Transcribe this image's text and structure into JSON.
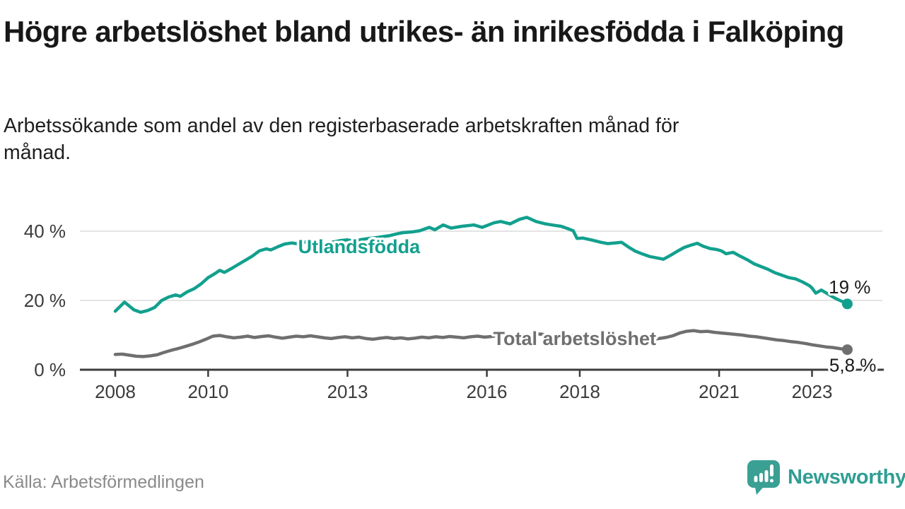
{
  "header": {
    "title": "Högre arbetslöshet bland utrikes- än inrikesfödda i Falköping",
    "subtitle": "Arbetssökande som andel av den registerbaserade arbetskraften månad för månad."
  },
  "footer": {
    "source": "Källa: Arbetsförmedlingen",
    "brand_name": "Newsworthy",
    "brand_icon": "newsworthy-speech-bubble-bar-chart-icon"
  },
  "colors": {
    "teal_series": "#12a08e",
    "gray_series": "#6f6f6f",
    "axis": "#3d3d3d",
    "grid": "#dcdcdc",
    "tick_label": "#3b3b3b",
    "value_label": "#1a1a1a",
    "title": "#181818",
    "subtitle": "#202020",
    "source": "#8a8a8a",
    "brand": "#2f9e93",
    "background": "#ffffff"
  },
  "chart_data": {
    "type": "line",
    "title": "Högre arbetslöshet bland utrikes- än inrikesfödda i Falköping",
    "subtitle": "Arbetssökande som andel av den registerbaserade arbetskraften månad för månad.",
    "xlabel": "",
    "ylabel": "",
    "xlim": [
      2007.25,
      2024.5
    ],
    "ylim": [
      0,
      46
    ],
    "grid": "horizontal",
    "legend": "direct-labels",
    "x_ticks": [
      {
        "year": 2008,
        "label": "2008"
      },
      {
        "year": 2010,
        "label": "2010"
      },
      {
        "year": 2013,
        "label": "2013"
      },
      {
        "year": 2016,
        "label": "2016"
      },
      {
        "year": 2018,
        "label": "2018"
      },
      {
        "year": 2021,
        "label": "2021"
      },
      {
        "year": 2023,
        "label": "2023"
      }
    ],
    "y_ticks": [
      {
        "value": 0,
        "label": "0 %"
      },
      {
        "value": 20,
        "label": "20 %"
      },
      {
        "value": 40,
        "label": "40 %"
      }
    ],
    "series": [
      {
        "name": "Utlandsfödda",
        "color_key": "teal_series",
        "end_label": "19 %",
        "end_value": 19.0,
        "label_anchor": {
          "x": 2013.25,
          "y": 33.7
        },
        "points": [
          [
            2008.0,
            16.9
          ],
          [
            2008.1,
            18.2
          ],
          [
            2008.2,
            19.5
          ],
          [
            2008.3,
            18.4
          ],
          [
            2008.4,
            17.3
          ],
          [
            2008.55,
            16.6
          ],
          [
            2008.7,
            17.1
          ],
          [
            2008.85,
            18.0
          ],
          [
            2009.0,
            20.0
          ],
          [
            2009.15,
            21.0
          ],
          [
            2009.3,
            21.6
          ],
          [
            2009.4,
            21.2
          ],
          [
            2009.55,
            22.5
          ],
          [
            2009.7,
            23.4
          ],
          [
            2009.85,
            24.8
          ],
          [
            2010.0,
            26.6
          ],
          [
            2010.15,
            27.8
          ],
          [
            2010.25,
            28.7
          ],
          [
            2010.35,
            28.1
          ],
          [
            2010.5,
            29.2
          ],
          [
            2010.65,
            30.4
          ],
          [
            2010.8,
            31.6
          ],
          [
            2010.95,
            32.8
          ],
          [
            2011.1,
            34.3
          ],
          [
            2011.25,
            34.9
          ],
          [
            2011.35,
            34.6
          ],
          [
            2011.5,
            35.5
          ],
          [
            2011.65,
            36.3
          ],
          [
            2011.8,
            36.6
          ],
          [
            2011.95,
            36.3
          ],
          [
            2012.1,
            36.9
          ],
          [
            2012.25,
            37.2
          ],
          [
            2012.4,
            36.8
          ],
          [
            2012.55,
            36.5
          ],
          [
            2012.7,
            36.9
          ],
          [
            2012.85,
            37.3
          ],
          [
            2013.0,
            37.5
          ],
          [
            2013.15,
            37.1
          ],
          [
            2013.3,
            37.6
          ],
          [
            2013.45,
            37.9
          ],
          [
            2013.6,
            38.1
          ],
          [
            2013.75,
            38.4
          ],
          [
            2013.9,
            38.7
          ],
          [
            2014.05,
            39.2
          ],
          [
            2014.2,
            39.6
          ],
          [
            2014.4,
            39.8
          ],
          [
            2014.55,
            40.1
          ],
          [
            2014.76,
            41.1
          ],
          [
            2014.88,
            40.4
          ],
          [
            2015.06,
            41.8
          ],
          [
            2015.23,
            40.9
          ],
          [
            2015.46,
            41.4
          ],
          [
            2015.72,
            41.8
          ],
          [
            2015.9,
            41.1
          ],
          [
            2016.15,
            42.4
          ],
          [
            2016.3,
            42.8
          ],
          [
            2016.5,
            42.1
          ],
          [
            2016.7,
            43.4
          ],
          [
            2016.86,
            44.0
          ],
          [
            2017.06,
            42.8
          ],
          [
            2017.26,
            42.1
          ],
          [
            2017.45,
            41.7
          ],
          [
            2017.6,
            41.4
          ],
          [
            2017.75,
            40.7
          ],
          [
            2017.86,
            40.1
          ],
          [
            2017.94,
            37.9
          ],
          [
            2018.07,
            38.0
          ],
          [
            2018.27,
            37.4
          ],
          [
            2018.45,
            36.8
          ],
          [
            2018.6,
            36.4
          ],
          [
            2018.75,
            36.6
          ],
          [
            2018.9,
            36.8
          ],
          [
            2019.05,
            35.4
          ],
          [
            2019.2,
            34.2
          ],
          [
            2019.35,
            33.4
          ],
          [
            2019.5,
            32.7
          ],
          [
            2019.65,
            32.3
          ],
          [
            2019.8,
            31.9
          ],
          [
            2019.95,
            33.0
          ],
          [
            2020.1,
            34.2
          ],
          [
            2020.25,
            35.3
          ],
          [
            2020.4,
            36.0
          ],
          [
            2020.53,
            36.5
          ],
          [
            2020.65,
            35.7
          ],
          [
            2020.8,
            35.0
          ],
          [
            2020.95,
            34.7
          ],
          [
            2021.05,
            34.3
          ],
          [
            2021.15,
            33.5
          ],
          [
            2021.3,
            33.9
          ],
          [
            2021.45,
            32.8
          ],
          [
            2021.6,
            31.8
          ],
          [
            2021.75,
            30.6
          ],
          [
            2021.9,
            29.8
          ],
          [
            2022.05,
            29.0
          ],
          [
            2022.2,
            28.0
          ],
          [
            2022.35,
            27.3
          ],
          [
            2022.5,
            26.6
          ],
          [
            2022.65,
            26.2
          ],
          [
            2022.8,
            25.3
          ],
          [
            2022.95,
            24.2
          ],
          [
            2023.0,
            23.6
          ],
          [
            2023.08,
            22.1
          ],
          [
            2023.2,
            23.0
          ],
          [
            2023.3,
            22.2
          ],
          [
            2023.45,
            21.0
          ],
          [
            2023.55,
            20.3
          ],
          [
            2023.65,
            19.7
          ],
          [
            2023.76,
            19.0
          ]
        ]
      },
      {
        "name": "Total arbetslöshet",
        "color_key": "gray_series",
        "end_label": "5,8 %",
        "end_value": 5.8,
        "label_anchor": {
          "x": 2017.89,
          "y": 7.1
        },
        "points": [
          [
            2008.0,
            4.4
          ],
          [
            2008.15,
            4.5
          ],
          [
            2008.3,
            4.2
          ],
          [
            2008.45,
            3.9
          ],
          [
            2008.6,
            3.8
          ],
          [
            2008.75,
            4.0
          ],
          [
            2008.9,
            4.3
          ],
          [
            2009.05,
            5.0
          ],
          [
            2009.2,
            5.6
          ],
          [
            2009.35,
            6.1
          ],
          [
            2009.5,
            6.7
          ],
          [
            2009.65,
            7.3
          ],
          [
            2009.8,
            8.0
          ],
          [
            2009.95,
            8.8
          ],
          [
            2010.1,
            9.7
          ],
          [
            2010.25,
            9.9
          ],
          [
            2010.4,
            9.5
          ],
          [
            2010.55,
            9.2
          ],
          [
            2010.7,
            9.4
          ],
          [
            2010.85,
            9.7
          ],
          [
            2011.0,
            9.3
          ],
          [
            2011.15,
            9.6
          ],
          [
            2011.3,
            9.8
          ],
          [
            2011.45,
            9.4
          ],
          [
            2011.6,
            9.1
          ],
          [
            2011.75,
            9.4
          ],
          [
            2011.9,
            9.7
          ],
          [
            2012.05,
            9.5
          ],
          [
            2012.2,
            9.8
          ],
          [
            2012.35,
            9.5
          ],
          [
            2012.5,
            9.2
          ],
          [
            2012.65,
            9.0
          ],
          [
            2012.8,
            9.3
          ],
          [
            2012.95,
            9.5
          ],
          [
            2013.1,
            9.2
          ],
          [
            2013.25,
            9.4
          ],
          [
            2013.4,
            9.0
          ],
          [
            2013.55,
            8.8
          ],
          [
            2013.7,
            9.1
          ],
          [
            2013.85,
            9.3
          ],
          [
            2014.0,
            9.0
          ],
          [
            2014.15,
            9.2
          ],
          [
            2014.3,
            8.9
          ],
          [
            2014.45,
            9.1
          ],
          [
            2014.6,
            9.4
          ],
          [
            2014.75,
            9.2
          ],
          [
            2014.9,
            9.5
          ],
          [
            2015.05,
            9.3
          ],
          [
            2015.2,
            9.6
          ],
          [
            2015.35,
            9.4
          ],
          [
            2015.5,
            9.2
          ],
          [
            2015.65,
            9.5
          ],
          [
            2015.8,
            9.7
          ],
          [
            2015.95,
            9.4
          ],
          [
            2016.1,
            9.6
          ],
          [
            2016.25,
            9.9
          ],
          [
            2016.4,
            9.7
          ],
          [
            2016.55,
            10.0
          ],
          [
            2016.7,
            10.2
          ],
          [
            2016.85,
            9.9
          ],
          [
            2017.0,
            10.1
          ],
          [
            2017.15,
            10.3
          ],
          [
            2017.3,
            10.0
          ],
          [
            2017.45,
            9.8
          ],
          [
            2017.6,
            10.0
          ],
          [
            2017.75,
            9.7
          ],
          [
            2017.9,
            9.9
          ],
          [
            2018.05,
            9.6
          ],
          [
            2018.2,
            9.8
          ],
          [
            2018.35,
            9.5
          ],
          [
            2018.5,
            9.3
          ],
          [
            2018.65,
            9.5
          ],
          [
            2018.8,
            9.2
          ],
          [
            2018.95,
            9.4
          ],
          [
            2019.1,
            9.1
          ],
          [
            2019.25,
            8.9
          ],
          [
            2019.4,
            9.1
          ],
          [
            2019.55,
            8.8
          ],
          [
            2019.7,
            9.0
          ],
          [
            2019.85,
            9.3
          ],
          [
            2020.0,
            9.8
          ],
          [
            2020.15,
            10.6
          ],
          [
            2020.3,
            11.1
          ],
          [
            2020.45,
            11.3
          ],
          [
            2020.6,
            11.0
          ],
          [
            2020.75,
            11.1
          ],
          [
            2020.9,
            10.8
          ],
          [
            2021.05,
            10.6
          ],
          [
            2021.2,
            10.4
          ],
          [
            2021.35,
            10.2
          ],
          [
            2021.5,
            10.0
          ],
          [
            2021.65,
            9.7
          ],
          [
            2021.8,
            9.5
          ],
          [
            2021.95,
            9.2
          ],
          [
            2022.1,
            8.9
          ],
          [
            2022.25,
            8.6
          ],
          [
            2022.4,
            8.4
          ],
          [
            2022.55,
            8.1
          ],
          [
            2022.7,
            7.9
          ],
          [
            2022.85,
            7.6
          ],
          [
            2023.0,
            7.2
          ],
          [
            2023.15,
            6.9
          ],
          [
            2023.3,
            6.6
          ],
          [
            2023.45,
            6.4
          ],
          [
            2023.6,
            6.1
          ],
          [
            2023.76,
            5.8
          ]
        ]
      }
    ]
  }
}
